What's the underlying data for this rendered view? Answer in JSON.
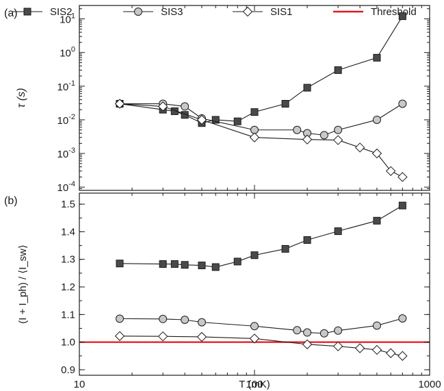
{
  "colors": {
    "axis": "#1a1a1a",
    "SIS2_fill": "#4a4a4a",
    "SIS3_fill": "#c8c8c8",
    "SIS1_fill": "#ffffff",
    "threshold": "#e8141c"
  },
  "legend": {
    "placement": "top",
    "items": [
      {
        "label": "SIS2",
        "marker": "square"
      },
      {
        "label": "SIS3",
        "marker": "circle"
      },
      {
        "label": "SIS1",
        "marker": "diamond"
      },
      {
        "label": "Threshold",
        "marker": "line"
      }
    ]
  },
  "chart_data": [
    {
      "type": "line",
      "panel_label": "(a)",
      "xscale": "log",
      "yscale": "log",
      "xlim": [
        10,
        1000
      ],
      "ylim": [
        8e-05,
        25
      ],
      "xticks": [
        10,
        100,
        1000
      ],
      "xtick_labels": [
        "10",
        "100",
        "1000"
      ],
      "yticks": [
        0.0001,
        0.001,
        0.01,
        0.1,
        1,
        10
      ],
      "ytick_labels": [
        [
          "10",
          "-4"
        ],
        [
          "10",
          "-3"
        ],
        [
          "10",
          "-2"
        ],
        [
          "10",
          "-1"
        ],
        [
          "10",
          "0"
        ],
        [
          "10",
          "1"
        ]
      ],
      "ylabel": "τ (s)",
      "grid": false,
      "series": [
        {
          "name": "SIS2",
          "marker": "square",
          "x": [
            17,
            30,
            35,
            40,
            50,
            60,
            80,
            100,
            150,
            200,
            300,
            500,
            700
          ],
          "y": [
            0.03,
            0.02,
            0.018,
            0.014,
            0.008,
            0.01,
            0.009,
            0.017,
            0.03,
            0.09,
            0.3,
            0.7,
            12
          ]
        },
        {
          "name": "SIS3",
          "marker": "circle",
          "x": [
            17,
            30,
            40,
            50,
            100,
            175,
            200,
            250,
            300,
            500,
            700
          ],
          "y": [
            0.03,
            0.03,
            0.025,
            0.011,
            0.005,
            0.005,
            0.004,
            0.0035,
            0.005,
            0.01,
            0.03
          ]
        },
        {
          "name": "SIS1",
          "marker": "diamond",
          "x": [
            17,
            30,
            50,
            100,
            200,
            300,
            400,
            500,
            600,
            700
          ],
          "y": [
            0.03,
            0.025,
            0.01,
            0.003,
            0.0026,
            0.0025,
            0.0015,
            0.001,
            0.0003,
            0.0002
          ]
        }
      ]
    },
    {
      "type": "line",
      "panel_label": "(b)",
      "xscale": "log",
      "xlim": [
        10,
        1000
      ],
      "ylim": [
        0.88,
        1.54
      ],
      "xticks": [
        10,
        100,
        1000
      ],
      "xtick_labels": [
        "10",
        "100",
        "1000"
      ],
      "yticks": [
        0.9,
        1.0,
        1.1,
        1.2,
        1.3,
        1.4,
        1.5
      ],
      "ytick_labels": [
        "0.9",
        "1.0",
        "1.1",
        "1.2",
        "1.3",
        "1.4",
        "1.5"
      ],
      "ylabel": "(I + I_ph) / ⟨I_sw⟩",
      "xlabel": "T (mK)",
      "grid": false,
      "threshold": 1.0,
      "series": [
        {
          "name": "SIS2",
          "marker": "square",
          "x": [
            17,
            30,
            35,
            40,
            50,
            60,
            80,
            100,
            150,
            200,
            300,
            500,
            700
          ],
          "y": [
            1.285,
            1.283,
            1.283,
            1.28,
            1.278,
            1.272,
            1.292,
            1.315,
            1.338,
            1.37,
            1.402,
            1.44,
            1.495
          ]
        },
        {
          "name": "SIS3",
          "marker": "circle",
          "x": [
            17,
            30,
            40,
            50,
            100,
            175,
            200,
            250,
            300,
            500,
            700
          ],
          "y": [
            1.085,
            1.084,
            1.081,
            1.072,
            1.058,
            1.043,
            1.035,
            1.032,
            1.042,
            1.06,
            1.086
          ]
        },
        {
          "name": "SIS1",
          "marker": "diamond",
          "x": [
            17,
            30,
            50,
            100,
            200,
            300,
            400,
            500,
            600,
            700
          ],
          "y": [
            1.022,
            1.021,
            1.019,
            1.013,
            0.992,
            0.985,
            0.978,
            0.972,
            0.96,
            0.95
          ]
        }
      ]
    }
  ]
}
